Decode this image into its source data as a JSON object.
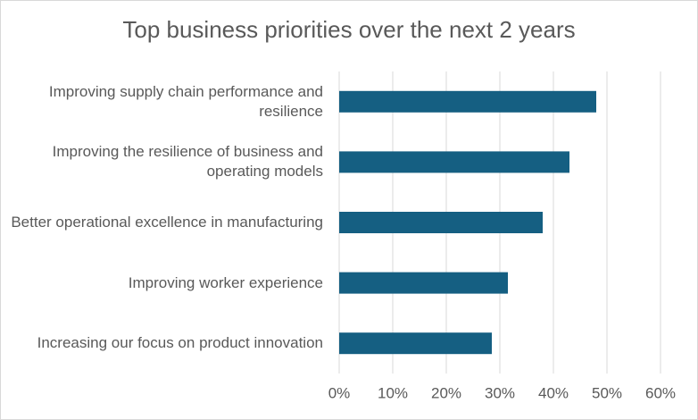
{
  "chart_data": {
    "type": "barh",
    "title": "Top business priorities over the next 2 years",
    "categories": [
      "Improving supply chain performance and resilience",
      "Improving the resilience of business and operating models",
      "Better operational excellence in manufacturing",
      "Improving worker experience",
      "Increasing our focus on product innovation"
    ],
    "values": [
      48,
      43,
      38,
      31.5,
      28.5
    ],
    "color": "#155f82",
    "xlim": [
      0,
      60
    ],
    "xticks": [
      {
        "value": 0,
        "label": "0%"
      },
      {
        "value": 10,
        "label": "10%"
      },
      {
        "value": 20,
        "label": "20%"
      },
      {
        "value": 30,
        "label": "30%"
      },
      {
        "value": 40,
        "label": "40%"
      },
      {
        "value": 50,
        "label": "50%"
      },
      {
        "value": 60,
        "label": "60%"
      }
    ],
    "grid": true
  }
}
